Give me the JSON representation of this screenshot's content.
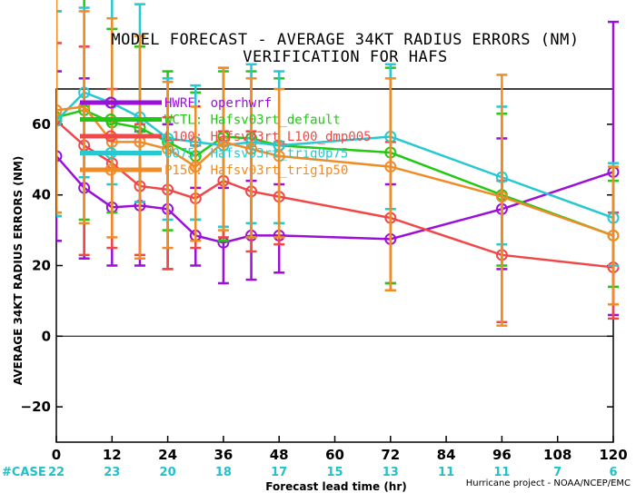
{
  "title_line1": "MODEL FORECAST - AVERAGE 34KT RADIUS ERRORS (NM)",
  "title_line2": "VERIFICATION FOR HAFS",
  "credit": "Hurricane project - NOAA/NCEP/EMC",
  "chart_data": {
    "type": "line",
    "title": "MODEL FORECAST - AVERAGE 34KT RADIUS ERRORS (NM)",
    "subtitle": "VERIFICATION FOR HAFS",
    "xlabel": "Forecast lead time (hr)",
    "ylabel": "AVERAGE 34KT RADIUS ERRORS (NM)",
    "xlim": [
      0,
      120
    ],
    "ylim": [
      -30,
      70
    ],
    "x_ticks": [
      0,
      12,
      24,
      36,
      48,
      60,
      72,
      84,
      96,
      108,
      120
    ],
    "y_ticks": [
      -20,
      0,
      20,
      40,
      60
    ],
    "case_label": "#CASE",
    "case_counts": [
      "22",
      "23",
      "20",
      "18",
      "17",
      "15",
      "13",
      "11",
      "11",
      "7",
      "6"
    ],
    "case_color": "#22c0c8",
    "grid": false,
    "zero_line": 0,
    "legend_position": "top-left (inside)",
    "series": [
      {
        "name": "HWRF: operhwrf",
        "color": "#9a10d8",
        "marker": "circle-open",
        "x": [
          0,
          6,
          12,
          18,
          24,
          30,
          36,
          42,
          48,
          72,
          96,
          120
        ],
        "y": [
          51,
          42,
          36.5,
          37,
          36,
          28.5,
          26.5,
          28.5,
          28.5,
          27.5,
          36,
          46.5
        ],
        "err_low": [
          27,
          22,
          20,
          20,
          19,
          20,
          15,
          16,
          18,
          15,
          19,
          6
        ],
        "err_high": [
          75,
          73,
          57,
          58,
          60,
          42,
          42,
          44,
          43,
          43,
          56,
          89
        ]
      },
      {
        "name": "WCTL: Hafsv03rt_default",
        "color": "#22c814",
        "marker": "circle-open",
        "x": [
          0,
          6,
          12,
          18,
          24,
          30,
          36,
          42,
          48,
          72,
          96,
          120
        ],
        "y": [
          62,
          64,
          60.5,
          59,
          55,
          51,
          56.5,
          56,
          54,
          52,
          40,
          28.5
        ],
        "err_low": [
          34,
          33,
          35,
          38,
          30,
          33,
          27,
          28,
          32,
          15,
          20,
          14
        ],
        "err_high": [
          92,
          96,
          87,
          82,
          75,
          69,
          75,
          75,
          73,
          76,
          63,
          44
        ]
      },
      {
        "name": "L100: Hafsv03rt_L100_dmp005",
        "color": "#f04848",
        "marker": "circle-open",
        "x": [
          0,
          6,
          12,
          18,
          24,
          30,
          36,
          42,
          48,
          72,
          96,
          120
        ],
        "y": [
          61,
          54,
          49,
          42.5,
          41.5,
          39,
          44,
          41,
          39.5,
          33.5,
          23,
          19.5
        ],
        "err_low": [
          35,
          23,
          25,
          23,
          19,
          25,
          28,
          24,
          26,
          13,
          4,
          5
        ],
        "err_high": [
          83,
          82,
          70,
          60,
          62,
          54,
          58,
          58,
          55,
          55,
          44,
          35
        ]
      },
      {
        "name": "U075: Hafsv03rt_trig0p75",
        "color": "#28c8d0",
        "marker": "circle-open",
        "x": [
          0,
          6,
          12,
          18,
          24,
          30,
          36,
          42,
          48,
          72,
          96,
          120
        ],
        "y": [
          61,
          69,
          66,
          62,
          56,
          55,
          54,
          55,
          54,
          56.5,
          45,
          33.5
        ],
        "err_low": [
          34,
          45,
          43,
          38,
          33,
          33,
          31,
          32,
          32,
          36,
          26,
          20
        ],
        "err_high": [
          92,
          93,
          96,
          94,
          73,
          71,
          76,
          77,
          75,
          77,
          65,
          49
        ]
      },
      {
        "name": "P150: Hafsv03rt_trig1p50",
        "color": "#f08c28",
        "marker": "circle-open",
        "x": [
          0,
          6,
          12,
          18,
          24,
          30,
          36,
          42,
          48,
          72,
          96,
          120
        ],
        "y": [
          64,
          65,
          55,
          55,
          53,
          48,
          55,
          53,
          51,
          48,
          39.5,
          28.5
        ],
        "err_low": [
          35,
          32,
          28,
          22,
          25,
          27,
          30,
          28,
          28,
          13,
          3,
          9
        ],
        "err_high": [
          104,
          92,
          90,
          85,
          72,
          65,
          76,
          73,
          70,
          73,
          74,
          48
        ]
      }
    ]
  }
}
